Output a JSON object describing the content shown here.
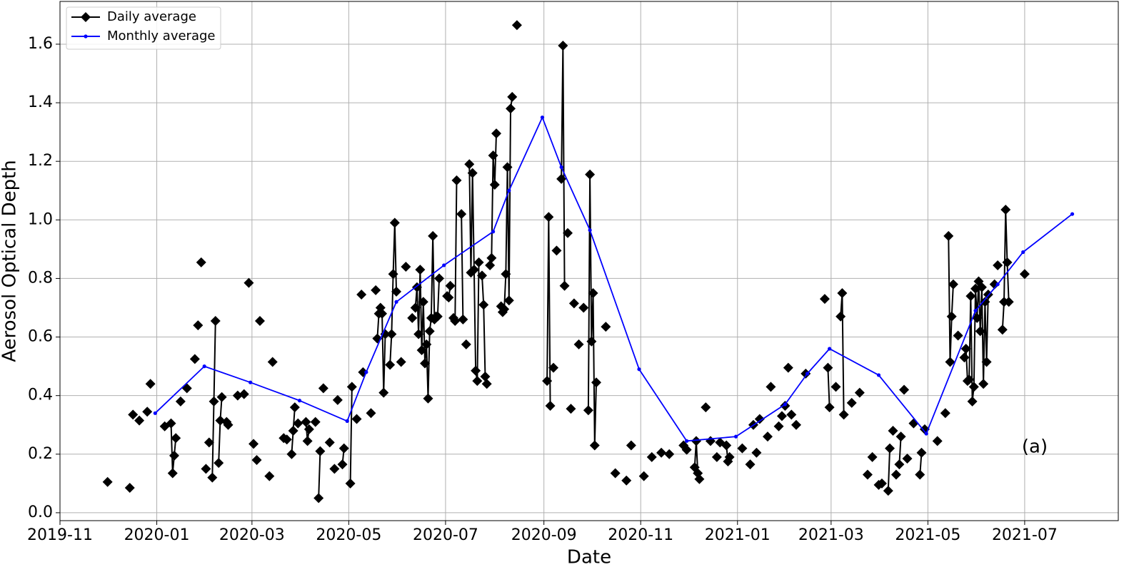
{
  "chart_data": {
    "type": "line",
    "xlabel": "Date",
    "ylabel": "Aerosol Optical Depth",
    "annotation": "(a)",
    "xlim": [
      "2019-11-01",
      "2021-08-29"
    ],
    "ylim": [
      -0.027,
      1.746
    ],
    "xticks": [
      "2019-11",
      "2020-01",
      "2020-03",
      "2020-05",
      "2020-07",
      "2020-09",
      "2020-11",
      "2021-01",
      "2021-03",
      "2021-05",
      "2021-07"
    ],
    "yticks": [
      {
        "value": 0,
        "label": "0.0"
      },
      0.2,
      0.4,
      0.6,
      0.8,
      {
        "value": 1,
        "label": "1.0"
      },
      1.2,
      1.4,
      1.6
    ],
    "grid": true,
    "legend": "upper left",
    "series": [
      {
        "name": "Daily average",
        "color": "#000000",
        "marker": "diamond",
        "x": [
          "2019-12-01",
          "2019-12-01",
          "2019-12-15",
          "2019-12-15",
          "2019-12-17",
          "2019-12-17",
          "2019-12-21",
          "2019-12-21",
          "2019-12-26",
          "2019-12-26",
          "2019-12-28",
          "2019-12-28",
          "2020-01-06",
          "2020-01-06",
          "2020-01-10",
          "2020-01-11",
          "2020-01-12",
          "2020-01-13",
          "2020-01-13",
          "2020-01-16",
          "2020-01-16",
          "2020-01-20",
          "2020-01-20",
          "2020-01-25",
          "2020-01-25",
          "2020-01-27",
          "2020-01-27",
          "2020-01-29",
          "2020-01-29",
          "2020-02-01",
          "2020-02-01",
          "2020-02-03",
          "2020-02-03",
          "2020-02-05",
          "2020-02-06",
          "2020-02-07",
          "2020-02-07",
          "2020-02-09",
          "2020-02-10",
          "2020-02-11",
          "2020-02-11",
          "2020-02-14",
          "2020-02-15",
          "2020-02-15",
          "2020-02-21",
          "2020-02-21",
          "2020-02-25",
          "2020-02-25",
          "2020-02-28",
          "2020-02-28",
          "2020-03-02",
          "2020-03-02",
          "2020-03-04",
          "2020-03-04",
          "2020-03-06",
          "2020-03-06",
          "2020-03-12",
          "2020-03-12",
          "2020-03-14",
          "2020-03-14",
          "2020-03-21",
          "2020-03-21",
          "2020-03-23",
          "2020-03-23",
          "2020-03-26",
          "2020-03-27",
          "2020-03-28",
          "2020-03-28",
          "2020-03-30",
          "2020-03-30",
          "2020-04-04",
          "2020-04-05",
          "2020-04-06",
          "2020-04-06",
          "2020-04-10",
          "2020-04-10",
          "2020-04-12",
          "2020-04-13",
          "2020-04-13",
          "2020-04-15",
          "2020-04-15",
          "2020-04-19",
          "2020-04-19",
          "2020-04-22",
          "2020-04-22",
          "2020-04-24",
          "2020-04-24",
          "2020-04-27",
          "2020-04-28",
          "2020-04-28",
          "2020-05-02",
          "2020-05-03",
          "2020-05-03",
          "2020-05-06",
          "2020-05-06",
          "2020-05-09",
          "2020-05-09",
          "2020-05-10",
          "2020-05-10",
          "2020-05-15",
          "2020-05-15",
          "2020-05-18",
          "2020-05-18",
          "2020-05-19",
          "2020-05-20",
          "2020-05-21",
          "2020-05-22",
          "2020-05-23",
          "2020-05-24",
          "2020-05-24",
          "2020-05-27",
          "2020-05-28",
          "2020-05-29",
          "2020-05-30",
          "2020-05-31",
          "2020-05-31",
          "2020-06-03",
          "2020-06-03",
          "2020-06-06",
          "2020-06-06",
          "2020-06-10",
          "2020-06-10",
          "2020-06-12",
          "2020-06-13",
          "2020-06-14",
          "2020-06-15",
          "2020-06-16",
          "2020-06-17",
          "2020-06-18",
          "2020-06-19",
          "2020-06-20",
          "2020-06-21",
          "2020-06-22",
          "2020-06-23",
          "2020-06-24",
          "2020-06-25",
          "2020-06-26",
          "2020-06-27",
          "2020-06-27",
          "2020-07-02",
          "2020-07-03",
          "2020-07-04",
          "2020-07-04",
          "2020-07-06",
          "2020-07-07",
          "2020-07-08",
          "2020-07-08",
          "2020-07-11",
          "2020-07-12",
          "2020-07-12",
          "2020-07-14",
          "2020-07-14",
          "2020-07-16",
          "2020-07-17",
          "2020-07-18",
          "2020-07-19",
          "2020-07-20",
          "2020-07-21",
          "2020-07-22",
          "2020-07-22",
          "2020-07-24",
          "2020-07-25",
          "2020-07-26",
          "2020-07-27",
          "2020-07-27",
          "2020-07-29",
          "2020-07-30",
          "2020-07-31",
          "2020-08-01",
          "2020-08-02",
          "2020-08-02",
          "2020-08-05",
          "2020-08-06",
          "2020-08-07",
          "2020-08-08",
          "2020-08-09",
          "2020-08-10",
          "2020-08-11",
          "2020-08-12",
          "2020-08-12",
          "2020-08-15",
          "2020-08-15",
          "2020-09-03",
          "2020-09-04",
          "2020-09-05",
          "2020-09-05",
          "2020-09-07",
          "2020-09-07",
          "2020-09-09",
          "2020-09-09",
          "2020-09-12",
          "2020-09-13",
          "2020-09-14",
          "2020-09-14",
          "2020-09-16",
          "2020-09-16",
          "2020-09-18",
          "2020-09-18",
          "2020-09-20",
          "2020-09-20",
          "2020-09-23",
          "2020-09-23",
          "2020-09-26",
          "2020-09-26",
          "2020-09-29",
          "2020-09-30",
          "2020-10-01",
          "2020-10-02",
          "2020-10-03",
          "2020-10-04",
          "2020-10-04",
          "2020-10-10",
          "2020-10-10",
          "2020-10-16",
          "2020-10-16",
          "2020-10-23",
          "2020-10-23",
          "2020-10-26",
          "2020-10-26",
          "2020-11-03",
          "2020-11-03",
          "2020-11-08",
          "2020-11-08",
          "2020-11-14",
          "2020-11-14",
          "2020-11-19",
          "2020-11-19",
          "2020-11-28",
          "2020-11-28",
          "2020-11-30",
          "2020-11-30",
          "2020-12-05",
          "2020-12-06",
          "2020-12-07",
          "2020-12-08",
          "2020-12-08",
          "2020-12-12",
          "2020-12-12",
          "2020-12-15",
          "2020-12-15",
          "2020-12-19",
          "2020-12-19",
          "2020-12-21",
          "2020-12-21",
          "2020-12-25",
          "2020-12-26",
          "2020-12-27",
          "2020-12-27",
          "2021-01-04",
          "2021-01-04",
          "2021-01-09",
          "2021-01-09",
          "2021-01-11",
          "2021-01-11",
          "2021-01-13",
          "2021-01-13",
          "2021-01-15",
          "2021-01-15",
          "2021-01-20",
          "2021-01-20",
          "2021-01-22",
          "2021-01-22",
          "2021-01-27",
          "2021-01-27",
          "2021-01-29",
          "2021-01-29",
          "2021-01-31",
          "2021-01-31",
          "2021-02-02",
          "2021-02-02",
          "2021-02-04",
          "2021-02-04",
          "2021-02-07",
          "2021-02-07",
          "2021-02-13",
          "2021-02-13",
          "2021-02-25",
          "2021-02-25",
          "2021-02-27",
          "2021-02-28",
          "2021-02-28",
          "2021-03-04",
          "2021-03-04",
          "2021-03-07",
          "2021-03-08",
          "2021-03-09",
          "2021-03-09",
          "2021-03-14",
          "2021-03-14",
          "2021-03-19",
          "2021-03-19",
          "2021-03-24",
          "2021-03-24",
          "2021-03-27",
          "2021-03-27",
          "2021-03-31",
          "2021-03-31",
          "2021-04-02",
          "2021-04-02",
          "2021-04-06",
          "2021-04-07",
          "2021-04-07",
          "2021-04-09",
          "2021-04-09",
          "2021-04-11",
          "2021-04-11",
          "2021-04-13",
          "2021-04-14",
          "2021-04-14",
          "2021-04-16",
          "2021-04-16",
          "2021-04-18",
          "2021-04-18",
          "2021-04-22",
          "2021-04-22",
          "2021-04-26",
          "2021-04-27",
          "2021-04-27",
          "2021-04-29",
          "2021-04-29",
          "2021-05-07",
          "2021-05-07",
          "2021-05-12",
          "2021-05-12",
          "2021-05-14",
          "2021-05-15",
          "2021-05-16",
          "2021-05-17",
          "2021-05-17",
          "2021-05-20",
          "2021-05-20",
          "2021-05-24",
          "2021-05-25",
          "2021-05-26",
          "2021-05-27",
          "2021-05-28",
          "2021-05-29",
          "2021-05-30",
          "2021-05-31",
          "2021-06-01",
          "2021-06-02",
          "2021-06-03",
          "2021-06-04",
          "2021-06-05",
          "2021-06-06",
          "2021-06-07",
          "2021-06-08",
          "2021-06-08",
          "2021-06-12",
          "2021-06-12",
          "2021-06-14",
          "2021-06-14",
          "2021-06-17",
          "2021-06-18",
          "2021-06-19",
          "2021-06-20",
          "2021-06-21",
          "2021-06-21",
          "2021-07-01"
        ],
        "values": [
          0.105,
          null,
          0.085,
          null,
          0.335,
          null,
          0.315,
          null,
          0.345,
          null,
          0.44,
          null,
          0.295,
          null,
          0.305,
          0.135,
          0.195,
          0.255,
          null,
          0.38,
          null,
          0.425,
          null,
          0.525,
          null,
          0.64,
          null,
          0.855,
          null,
          0.15,
          null,
          0.24,
          null,
          0.12,
          0.38,
          0.655,
          null,
          0.17,
          0.315,
          0.395,
          null,
          0.31,
          0.3,
          null,
          0.4,
          null,
          0.405,
          null,
          0.785,
          null,
          0.235,
          null,
          0.18,
          null,
          0.655,
          null,
          0.125,
          null,
          0.515,
          null,
          0.255,
          null,
          0.25,
          null,
          0.2,
          0.28,
          0.36,
          null,
          0.305,
          null,
          0.31,
          0.245,
          0.285,
          null,
          0.31,
          null,
          0.05,
          0.21,
          null,
          0.425,
          null,
          0.24,
          null,
          0.15,
          null,
          0.385,
          null,
          0.165,
          0.22,
          null,
          0.1,
          0.43,
          null,
          0.32,
          null,
          0.745,
          null,
          0.48,
          null,
          0.34,
          null,
          0.76,
          null,
          0.595,
          0.68,
          0.7,
          0.68,
          0.41,
          0.61,
          null,
          0.505,
          0.61,
          0.815,
          0.99,
          0.755,
          null,
          0.515,
          null,
          0.84,
          null,
          0.665,
          null,
          0.7,
          0.77,
          0.61,
          0.83,
          0.555,
          0.72,
          0.51,
          0.575,
          0.39,
          0.62,
          0.665,
          0.945,
          0.66,
          0.67,
          0.67,
          0.8,
          null,
          0.74,
          0.735,
          0.775,
          null,
          0.665,
          0.655,
          1.135,
          null,
          1.02,
          0.66,
          null,
          0.575,
          null,
          1.19,
          0.82,
          1.16,
          0.83,
          0.485,
          0.45,
          0.855,
          null,
          0.81,
          0.71,
          0.465,
          0.44,
          null,
          0.845,
          0.87,
          1.22,
          1.12,
          1.295,
          null,
          0.705,
          0.685,
          0.695,
          0.815,
          1.18,
          0.725,
          1.38,
          1.42,
          null,
          1.665,
          null,
          0.45,
          1.01,
          0.365,
          null,
          0.495,
          null,
          0.895,
          null,
          1.14,
          1.595,
          0.775,
          null,
          0.955,
          null,
          0.355,
          null,
          0.715,
          null,
          0.575,
          null,
          0.7,
          null,
          0.35,
          1.155,
          0.585,
          0.75,
          0.23,
          0.445,
          null,
          0.635,
          null,
          0.135,
          null,
          0.11,
          null,
          0.23,
          null,
          0.125,
          null,
          0.19,
          null,
          0.205,
          null,
          0.2,
          null,
          0.23,
          null,
          0.215,
          null,
          0.155,
          0.245,
          0.135,
          0.115,
          null,
          0.36,
          null,
          0.245,
          null,
          0.19,
          null,
          0.24,
          null,
          0.23,
          0.175,
          0.19,
          null,
          0.22,
          null,
          0.165,
          null,
          0.3,
          null,
          0.205,
          null,
          0.32,
          null,
          0.26,
          null,
          0.43,
          null,
          0.295,
          null,
          0.33,
          null,
          0.365,
          null,
          0.495,
          null,
          0.335,
          null,
          0.3,
          null,
          0.475,
          null,
          0.73,
          null,
          0.495,
          0.36,
          null,
          0.43,
          null,
          0.67,
          0.75,
          0.335,
          null,
          0.375,
          null,
          0.41,
          null,
          0.13,
          null,
          0.19,
          null,
          0.095,
          null,
          0.1,
          null,
          0.075,
          0.22,
          null,
          0.28,
          null,
          0.13,
          null,
          0.165,
          0.26,
          null,
          0.42,
          null,
          0.185,
          null,
          0.305,
          null,
          0.13,
          0.205,
          null,
          0.285,
          null,
          0.245,
          null,
          0.34,
          null,
          0.945,
          0.515,
          0.67,
          0.78,
          null,
          0.605,
          null,
          0.53,
          0.56,
          0.45,
          0.455,
          0.74,
          0.38,
          0.43,
          0.765,
          0.665,
          0.79,
          0.62,
          0.77,
          0.44,
          0.72,
          0.515,
          0.745,
          null,
          0.78,
          null,
          0.845,
          null,
          0.625,
          0.72,
          1.035,
          0.855,
          0.72,
          null,
          0.815
        ]
      },
      {
        "name": "Monthly average",
        "color": "#0000ff",
        "marker": "dot",
        "x": [
          "2019-12-31",
          "2020-01-31",
          "2020-02-29",
          "2020-03-31",
          "2020-04-30",
          "2020-05-12",
          "2020-05-31",
          "2020-06-30",
          "2020-07-31",
          "2020-08-10",
          "2020-08-31",
          "2020-09-12",
          "2020-09-30",
          "2020-10-31",
          "2020-11-30",
          "2020-12-31",
          "2021-01-31",
          "2021-02-14",
          "2021-02-28",
          "2021-03-31",
          "2021-04-30",
          "2021-05-31",
          "2021-06-14",
          "2021-06-30",
          "2021-07-31"
        ],
        "values": [
          0.34,
          0.5,
          0.445,
          0.383,
          0.313,
          0.48,
          0.72,
          0.845,
          0.96,
          1.1,
          1.35,
          1.18,
          0.965,
          0.49,
          0.245,
          0.26,
          0.37,
          0.475,
          0.56,
          0.47,
          0.27,
          0.69,
          0.78,
          0.89,
          1.02
        ]
      }
    ]
  }
}
